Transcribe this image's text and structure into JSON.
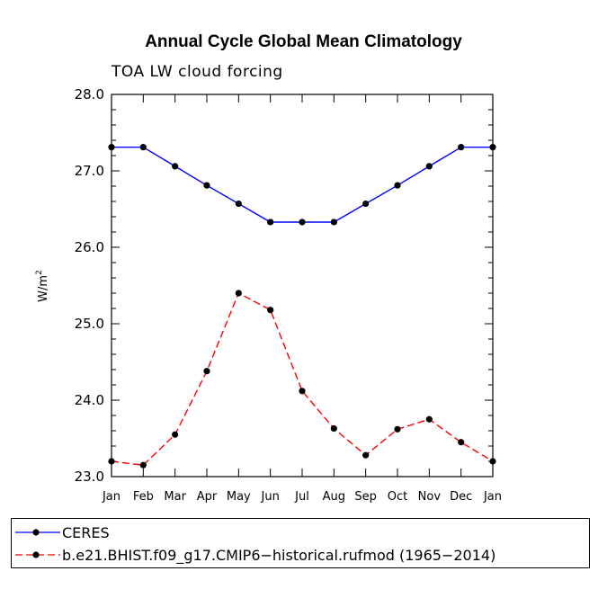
{
  "chart_data": {
    "type": "line",
    "title": "Annual Cycle Global Mean Climatology",
    "subtitle": "TOA LW cloud forcing",
    "xlabel": "",
    "ylabel": "W/m",
    "ylabel_superscript": "2",
    "categories": [
      "Jan",
      "Feb",
      "Mar",
      "Apr",
      "May",
      "Jun",
      "Jul",
      "Aug",
      "Sep",
      "Oct",
      "Nov",
      "Dec",
      "Jan"
    ],
    "ylim": [
      23.0,
      28.0
    ],
    "yticks": [
      "23.0",
      "24.0",
      "25.0",
      "26.0",
      "27.0",
      "28.0"
    ],
    "series": [
      {
        "name": "CERES",
        "color": "#0000ff",
        "dash": "solid",
        "values": [
          27.31,
          27.31,
          27.06,
          26.81,
          26.57,
          26.33,
          26.33,
          26.33,
          26.57,
          26.81,
          27.06,
          27.31,
          27.31
        ]
      },
      {
        "name": "b.e21.BHIST.f09_g17.CMIP6−historical.rufmod (1965−2014)",
        "color": "#ff0000",
        "dash": "dashed",
        "values": [
          23.2,
          23.15,
          23.55,
          24.38,
          25.4,
          25.18,
          24.12,
          23.63,
          23.28,
          23.62,
          23.75,
          23.45,
          23.2
        ]
      }
    ]
  }
}
